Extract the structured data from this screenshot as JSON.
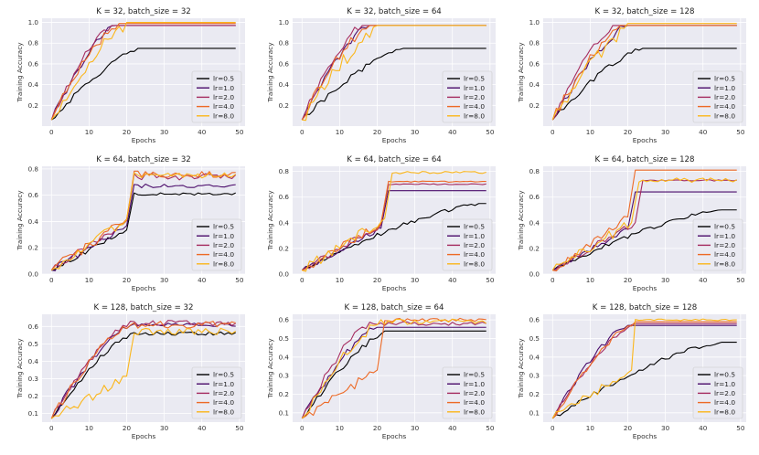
{
  "colors": {
    "panel_bg": "#eaeaf2",
    "grid": "#ffffff",
    "legend_bg": "#eaeaf2",
    "lr_0_5": "#000000",
    "lr_1_0": "#4b0c6b",
    "lr_2_0": "#a52c60",
    "lr_4_0": "#ed6925",
    "lr_8_0": "#fbb61a"
  },
  "chart_data": [
    {
      "type": "line",
      "title": "K = 32, batch_size = 32",
      "xlabel": "Epochs",
      "ylabel": "Training Accuracy",
      "xlim": [
        -2.5,
        51.5
      ],
      "ylim": [
        0.0,
        1.04
      ],
      "xticks": [
        0,
        10,
        20,
        30,
        40,
        50
      ],
      "xtick_labels": [
        "0",
        "10",
        "20",
        "30",
        "40",
        "50"
      ],
      "yticks": [
        0.2,
        0.4,
        0.6,
        0.8,
        1.0
      ],
      "ytick_labels": [
        "0.2",
        "0.4",
        "0.6",
        "0.8",
        "1.0"
      ],
      "legend": "lower-right",
      "series": [
        {
          "name": "lr=0.5",
          "start": 0.06,
          "plateau": 0.75,
          "rise_end": 24,
          "noise": 0.025,
          "osc": 0.0,
          "jump": 0,
          "color_key": "lr_0_5"
        },
        {
          "name": "lr=1.0",
          "start": 0.06,
          "plateau": 0.97,
          "rise_end": 17,
          "noise": 0.035,
          "osc": 0.0,
          "jump": 0,
          "color_key": "lr_1_0"
        },
        {
          "name": "lr=2.0",
          "start": 0.06,
          "plateau": 0.97,
          "rise_end": 16,
          "noise": 0.04,
          "osc": 0.0,
          "jump": 0,
          "color_key": "lr_2_0"
        },
        {
          "name": "lr=4.0",
          "start": 0.06,
          "plateau": 0.99,
          "rise_end": 18,
          "noise": 0.05,
          "osc": 0.0,
          "jump": 0,
          "color_key": "lr_4_0"
        },
        {
          "name": "lr=8.0",
          "start": 0.06,
          "plateau": 1.0,
          "rise_end": 21,
          "noise": 0.06,
          "osc": 0.0,
          "jump": 0,
          "color_key": "lr_8_0"
        }
      ]
    },
    {
      "type": "line",
      "title": "K = 32, batch_size = 64",
      "xlabel": "Epochs",
      "ylabel": "Training Accuracy",
      "xlim": [
        -2.5,
        51.5
      ],
      "ylim": [
        0.0,
        1.04
      ],
      "xticks": [
        0,
        10,
        20,
        30,
        40,
        50
      ],
      "xtick_labels": [
        "0",
        "10",
        "20",
        "30",
        "40",
        "50"
      ],
      "yticks": [
        0.2,
        0.4,
        0.6,
        0.8,
        1.0
      ],
      "ytick_labels": [
        "0.2",
        "0.4",
        "0.6",
        "0.8",
        "1.0"
      ],
      "legend": "lower-right",
      "series": [
        {
          "name": "lr=0.5",
          "start": 0.06,
          "plateau": 0.75,
          "rise_end": 27,
          "noise": 0.025,
          "osc": 0.0,
          "jump": 0,
          "color_key": "lr_0_5"
        },
        {
          "name": "lr=1.0",
          "start": 0.06,
          "plateau": 0.97,
          "rise_end": 18,
          "noise": 0.035,
          "osc": 0.0,
          "jump": 0,
          "color_key": "lr_1_0"
        },
        {
          "name": "lr=2.0",
          "start": 0.06,
          "plateau": 0.97,
          "rise_end": 16,
          "noise": 0.04,
          "osc": 0.0,
          "jump": 0,
          "color_key": "lr_2_0"
        },
        {
          "name": "lr=4.0",
          "start": 0.06,
          "plateau": 0.97,
          "rise_end": 18,
          "noise": 0.05,
          "osc": 0.0,
          "jump": 0,
          "color_key": "lr_4_0"
        },
        {
          "name": "lr=8.0",
          "start": 0.06,
          "plateau": 0.97,
          "rise_end": 22,
          "noise": 0.07,
          "osc": 0.0,
          "jump": 0,
          "color_key": "lr_8_0"
        }
      ]
    },
    {
      "type": "line",
      "title": "K = 32, batch_size = 128",
      "xlabel": "Epochs",
      "ylabel": "Training Accuracy",
      "xlim": [
        -2.5,
        51.5
      ],
      "ylim": [
        0.0,
        1.04
      ],
      "xticks": [
        0,
        10,
        20,
        30,
        40,
        50
      ],
      "xtick_labels": [
        "0",
        "10",
        "20",
        "30",
        "40",
        "50"
      ],
      "yticks": [
        0.2,
        0.4,
        0.6,
        0.8,
        1.0
      ],
      "ytick_labels": [
        "0.2",
        "0.4",
        "0.6",
        "0.8",
        "1.0"
      ],
      "legend": "lower-right",
      "series": [
        {
          "name": "lr=0.5",
          "start": 0.06,
          "plateau": 0.75,
          "rise_end": 24,
          "noise": 0.025,
          "osc": 0.0,
          "jump": 0,
          "color_key": "lr_0_5"
        },
        {
          "name": "lr=1.0",
          "start": 0.06,
          "plateau": 0.97,
          "rise_end": 20,
          "noise": 0.035,
          "osc": 0.0,
          "jump": 0,
          "color_key": "lr_1_0"
        },
        {
          "name": "lr=2.0",
          "start": 0.06,
          "plateau": 0.97,
          "rise_end": 17,
          "noise": 0.04,
          "osc": 0.0,
          "jump": 0,
          "color_key": "lr_2_0"
        },
        {
          "name": "lr=4.0",
          "start": 0.06,
          "plateau": 0.97,
          "rise_end": 19,
          "noise": 0.05,
          "osc": 0.0,
          "jump": 0,
          "color_key": "lr_4_0"
        },
        {
          "name": "lr=8.0",
          "start": 0.06,
          "plateau": 0.99,
          "rise_end": 22,
          "noise": 0.06,
          "osc": 0.0,
          "jump": 0,
          "color_key": "lr_8_0"
        }
      ]
    },
    {
      "type": "line",
      "title": "K = 64, batch_size = 32",
      "xlabel": "Epochs",
      "ylabel": "Training Accuracy",
      "xlim": [
        -2.5,
        51.5
      ],
      "ylim": [
        0.0,
        0.82
      ],
      "xticks": [
        0,
        10,
        20,
        30,
        40,
        50
      ],
      "xtick_labels": [
        "0",
        "10",
        "20",
        "30",
        "40",
        "50"
      ],
      "yticks": [
        0.0,
        0.2,
        0.4,
        0.6,
        0.8
      ],
      "ytick_labels": [
        "0.0",
        "0.2",
        "0.4",
        "0.6",
        "0.8"
      ],
      "legend": "lower-right",
      "series": [
        {
          "name": "lr=0.5",
          "start": 0.03,
          "plateau": 0.61,
          "rise_end": 22,
          "noise": 0.02,
          "osc": 0.01,
          "jump": 20,
          "color_key": "lr_0_5"
        },
        {
          "name": "lr=1.0",
          "start": 0.03,
          "plateau": 0.67,
          "rise_end": 22,
          "noise": 0.025,
          "osc": 0.015,
          "jump": 20,
          "color_key": "lr_1_0"
        },
        {
          "name": "lr=2.0",
          "start": 0.03,
          "plateau": 0.74,
          "rise_end": 22,
          "noise": 0.03,
          "osc": 0.025,
          "jump": 20,
          "color_key": "lr_2_0"
        },
        {
          "name": "lr=4.0",
          "start": 0.03,
          "plateau": 0.76,
          "rise_end": 22,
          "noise": 0.04,
          "osc": 0.025,
          "jump": 20,
          "color_key": "lr_4_0"
        },
        {
          "name": "lr=8.0",
          "start": 0.03,
          "plateau": 0.75,
          "rise_end": 22,
          "noise": 0.05,
          "osc": 0.02,
          "jump": 20,
          "color_key": "lr_8_0"
        }
      ]
    },
    {
      "type": "line",
      "title": "K = 64, batch_size = 64",
      "xlabel": "Epochs",
      "ylabel": "Training Accuracy",
      "xlim": [
        -2.5,
        51.5
      ],
      "ylim": [
        0.0,
        0.84
      ],
      "xticks": [
        0,
        10,
        20,
        30,
        40,
        50
      ],
      "xtick_labels": [
        "0",
        "10",
        "20",
        "30",
        "40",
        "50"
      ],
      "yticks": [
        0.0,
        0.2,
        0.4,
        0.6,
        0.8
      ],
      "ytick_labels": [
        "0.0",
        "0.2",
        "0.4",
        "0.6",
        "0.8"
      ],
      "legend": "lower-right",
      "series": [
        {
          "name": "lr=0.5",
          "start": 0.03,
          "plateau": 0.55,
          "rise_end": 48,
          "noise": 0.015,
          "osc": 0.0,
          "jump": 0,
          "color_key": "lr_0_5"
        },
        {
          "name": "lr=1.0",
          "start": 0.03,
          "plateau": 0.65,
          "rise_end": 23,
          "noise": 0.02,
          "osc": 0.0,
          "jump": 21,
          "color_key": "lr_1_0"
        },
        {
          "name": "lr=2.0",
          "start": 0.03,
          "plateau": 0.7,
          "rise_end": 23,
          "noise": 0.025,
          "osc": 0.005,
          "jump": 21,
          "color_key": "lr_2_0"
        },
        {
          "name": "lr=4.0",
          "start": 0.03,
          "plateau": 0.72,
          "rise_end": 23,
          "noise": 0.03,
          "osc": 0.005,
          "jump": 21,
          "color_key": "lr_4_0"
        },
        {
          "name": "lr=8.0",
          "start": 0.03,
          "plateau": 0.79,
          "rise_end": 24,
          "noise": 0.04,
          "osc": 0.01,
          "jump": 22,
          "color_key": "lr_8_0"
        }
      ]
    },
    {
      "type": "line",
      "title": "K = 64, batch_size = 128",
      "xlabel": "Epochs",
      "ylabel": "Training Accuracy",
      "xlim": [
        -2.5,
        51.5
      ],
      "ylim": [
        0.0,
        0.84
      ],
      "xticks": [
        0,
        10,
        20,
        30,
        40,
        50
      ],
      "xtick_labels": [
        "0",
        "10",
        "20",
        "30",
        "40",
        "50"
      ],
      "yticks": [
        0.0,
        0.2,
        0.4,
        0.6,
        0.8
      ],
      "ytick_labels": [
        "0.0",
        "0.2",
        "0.4",
        "0.6",
        "0.8"
      ],
      "legend": "lower-right",
      "series": [
        {
          "name": "lr=0.5",
          "start": 0.03,
          "plateau": 0.5,
          "rise_end": 45,
          "noise": 0.015,
          "osc": 0.0,
          "jump": 0,
          "color_key": "lr_0_5"
        },
        {
          "name": "lr=1.0",
          "start": 0.03,
          "plateau": 0.64,
          "rise_end": 22,
          "noise": 0.02,
          "osc": 0.0,
          "jump": 20,
          "color_key": "lr_1_0"
        },
        {
          "name": "lr=2.0",
          "start": 0.03,
          "plateau": 0.73,
          "rise_end": 24,
          "noise": 0.025,
          "osc": 0.005,
          "jump": 22,
          "color_key": "lr_2_0"
        },
        {
          "name": "lr=4.0",
          "start": 0.03,
          "plateau": 0.81,
          "rise_end": 22,
          "noise": 0.03,
          "osc": 0.0,
          "jump": 20,
          "color_key": "lr_4_0"
        },
        {
          "name": "lr=8.0",
          "start": 0.03,
          "plateau": 0.73,
          "rise_end": 23,
          "noise": 0.04,
          "osc": 0.02,
          "jump": 21,
          "color_key": "lr_8_0"
        }
      ]
    },
    {
      "type": "line",
      "title": "K = 128, batch_size = 32",
      "xlabel": "Epochs",
      "ylabel": "Training Accuracy",
      "xlim": [
        -2.5,
        51.5
      ],
      "ylim": [
        0.05,
        0.67
      ],
      "xticks": [
        0,
        10,
        20,
        30,
        40,
        50
      ],
      "xtick_labels": [
        "0",
        "10",
        "20",
        "30",
        "40",
        "50"
      ],
      "yticks": [
        0.1,
        0.2,
        0.3,
        0.4,
        0.5,
        0.6
      ],
      "ytick_labels": [
        "0.1",
        "0.2",
        "0.3",
        "0.4",
        "0.5",
        "0.6"
      ],
      "legend": "lower-right",
      "series": [
        {
          "name": "lr=0.5",
          "start": 0.07,
          "plateau": 0.56,
          "rise_end": 22,
          "noise": 0.015,
          "osc": 0.01,
          "jump": 0,
          "color_key": "lr_0_5"
        },
        {
          "name": "lr=1.0",
          "start": 0.07,
          "plateau": 0.61,
          "rise_end": 21,
          "noise": 0.02,
          "osc": 0.01,
          "jump": 0,
          "color_key": "lr_1_0"
        },
        {
          "name": "lr=2.0",
          "start": 0.07,
          "plateau": 0.62,
          "rise_end": 21,
          "noise": 0.02,
          "osc": 0.015,
          "jump": 0,
          "color_key": "lr_2_0"
        },
        {
          "name": "lr=4.0",
          "start": 0.07,
          "plateau": 0.61,
          "rise_end": 21,
          "noise": 0.025,
          "osc": 0.02,
          "jump": 0,
          "color_key": "lr_4_0"
        },
        {
          "name": "lr=8.0",
          "start": 0.07,
          "plateau": 0.57,
          "rise_end": 22,
          "noise": 0.03,
          "osc": 0.02,
          "jump": 20,
          "color_key": "lr_8_0"
        }
      ]
    },
    {
      "type": "line",
      "title": "K = 128, batch_size = 64",
      "xlabel": "Epochs",
      "ylabel": "Training Accuracy",
      "xlim": [
        -2.5,
        51.5
      ],
      "ylim": [
        0.05,
        0.63
      ],
      "xticks": [
        0,
        10,
        20,
        30,
        40,
        50
      ],
      "xtick_labels": [
        "0",
        "10",
        "20",
        "30",
        "40",
        "50"
      ],
      "yticks": [
        0.1,
        0.2,
        0.3,
        0.4,
        0.5,
        0.6
      ],
      "ytick_labels": [
        "0.1",
        "0.2",
        "0.3",
        "0.4",
        "0.5",
        "0.6"
      ],
      "legend": "lower-right",
      "series": [
        {
          "name": "lr=0.5",
          "start": 0.07,
          "plateau": 0.54,
          "rise_end": 23,
          "noise": 0.015,
          "osc": 0.0,
          "jump": 0,
          "color_key": "lr_0_5"
        },
        {
          "name": "lr=1.0",
          "start": 0.07,
          "plateau": 0.56,
          "rise_end": 20,
          "noise": 0.02,
          "osc": 0.0,
          "jump": 0,
          "color_key": "lr_1_0"
        },
        {
          "name": "lr=2.0",
          "start": 0.07,
          "plateau": 0.58,
          "rise_end": 18,
          "noise": 0.02,
          "osc": 0.01,
          "jump": 0,
          "color_key": "lr_2_0"
        },
        {
          "name": "lr=4.0",
          "start": 0.07,
          "plateau": 0.6,
          "rise_end": 22,
          "noise": 0.025,
          "osc": 0.01,
          "jump": 20,
          "color_key": "lr_4_0"
        },
        {
          "name": "lr=8.0",
          "start": 0.07,
          "plateau": 0.59,
          "rise_end": 21,
          "noise": 0.03,
          "osc": 0.015,
          "jump": 0,
          "color_key": "lr_8_0"
        }
      ]
    },
    {
      "type": "line",
      "title": "K = 128, batch_size = 128",
      "xlabel": "Epochs",
      "ylabel": "Training Accuracy",
      "xlim": [
        -2.5,
        51.5
      ],
      "ylim": [
        0.05,
        0.63
      ],
      "xticks": [
        0,
        10,
        20,
        30,
        40,
        50
      ],
      "xtick_labels": [
        "0",
        "10",
        "20",
        "30",
        "40",
        "50"
      ],
      "yticks": [
        0.1,
        0.2,
        0.3,
        0.4,
        0.5,
        0.6
      ],
      "ytick_labels": [
        "0.1",
        "0.2",
        "0.3",
        "0.4",
        "0.5",
        "0.6"
      ],
      "legend": "lower-right",
      "series": [
        {
          "name": "lr=0.5",
          "start": 0.07,
          "plateau": 0.48,
          "rise_end": 45,
          "noise": 0.012,
          "osc": 0.0,
          "jump": 0,
          "color_key": "lr_0_5"
        },
        {
          "name": "lr=1.0",
          "start": 0.07,
          "plateau": 0.57,
          "rise_end": 20,
          "noise": 0.015,
          "osc": 0.0,
          "jump": 0,
          "color_key": "lr_1_0"
        },
        {
          "name": "lr=2.0",
          "start": 0.07,
          "plateau": 0.58,
          "rise_end": 22,
          "noise": 0.015,
          "osc": 0.0,
          "jump": 0,
          "color_key": "lr_2_0"
        },
        {
          "name": "lr=4.0",
          "start": 0.07,
          "plateau": 0.59,
          "rise_end": 22,
          "noise": 0.02,
          "osc": 0.0,
          "jump": 0,
          "color_key": "lr_4_0"
        },
        {
          "name": "lr=8.0",
          "start": 0.07,
          "plateau": 0.6,
          "rise_end": 22,
          "noise": 0.025,
          "osc": 0.005,
          "jump": 21,
          "color_key": "lr_8_0"
        }
      ]
    }
  ]
}
